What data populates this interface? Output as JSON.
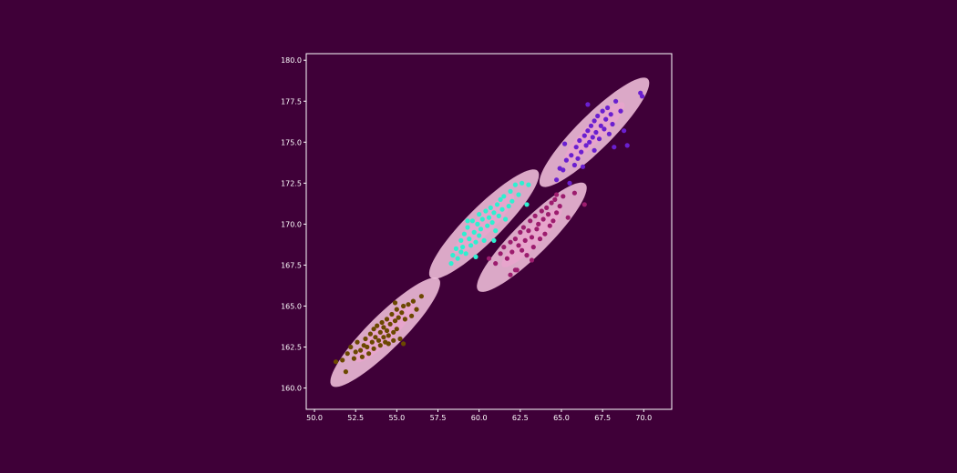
{
  "figure": {
    "background": "#3f0038"
  },
  "chart_data": {
    "type": "scatter",
    "title": "",
    "xlabel": "",
    "ylabel": "",
    "xlim": [
      49.5,
      71.7
    ],
    "ylim": [
      158.7,
      180.4
    ],
    "xticks": [
      "50.0",
      "52.5",
      "55.0",
      "57.5",
      "60.0",
      "62.5",
      "65.0",
      "67.5",
      "70.0"
    ],
    "yticks": [
      "160.0",
      "162.5",
      "165.0",
      "167.5",
      "170.0",
      "172.5",
      "175.0",
      "177.5",
      "180.0"
    ],
    "grid": false,
    "legend": "none",
    "frame_color": "#ffffff",
    "ellipse_color": "#f7c6e0",
    "series": [
      {
        "color": "#6b4800",
        "center": [
          54.3,
          163.4
        ],
        "ellipse": {
          "semi_major": 4.6,
          "semi_minor": 1.05,
          "angle_deg": 45
        },
        "points": [
          [
            51.3,
            161.6
          ],
          [
            51.7,
            161.7
          ],
          [
            51.9,
            161.0
          ],
          [
            52.0,
            162.1
          ],
          [
            52.2,
            162.5
          ],
          [
            52.4,
            161.8
          ],
          [
            52.5,
            162.2
          ],
          [
            52.6,
            162.8
          ],
          [
            52.8,
            162.3
          ],
          [
            52.9,
            161.9
          ],
          [
            53.0,
            162.6
          ],
          [
            53.1,
            163.0
          ],
          [
            53.2,
            162.5
          ],
          [
            53.3,
            162.1
          ],
          [
            53.4,
            163.3
          ],
          [
            53.5,
            162.8
          ],
          [
            53.6,
            163.6
          ],
          [
            53.6,
            162.4
          ],
          [
            53.7,
            163.1
          ],
          [
            53.8,
            163.8
          ],
          [
            53.9,
            162.9
          ],
          [
            54.0,
            163.4
          ],
          [
            54.0,
            162.6
          ],
          [
            54.1,
            164.0
          ],
          [
            54.2,
            163.1
          ],
          [
            54.2,
            163.7
          ],
          [
            54.3,
            162.8
          ],
          [
            54.4,
            163.5
          ],
          [
            54.4,
            164.2
          ],
          [
            54.5,
            163.2
          ],
          [
            54.5,
            162.7
          ],
          [
            54.6,
            163.9
          ],
          [
            54.7,
            164.5
          ],
          [
            54.8,
            163.4
          ],
          [
            54.8,
            162.9
          ],
          [
            54.9,
            164.1
          ],
          [
            55.0,
            164.8
          ],
          [
            55.0,
            163.6
          ],
          [
            55.1,
            164.3
          ],
          [
            55.2,
            163.0
          ],
          [
            55.3,
            164.6
          ],
          [
            55.4,
            165.0
          ],
          [
            55.4,
            162.7
          ],
          [
            55.5,
            164.2
          ],
          [
            55.7,
            165.1
          ],
          [
            55.9,
            164.4
          ],
          [
            56.0,
            165.3
          ],
          [
            56.2,
            164.8
          ],
          [
            56.5,
            165.6
          ],
          [
            54.9,
            165.2
          ]
        ]
      },
      {
        "color": "#2ef0d0",
        "center": [
          60.3,
          170.0
        ],
        "ellipse": {
          "semi_major": 4.6,
          "semi_minor": 1.05,
          "angle_deg": 45
        },
        "points": [
          [
            58.3,
            167.6
          ],
          [
            58.4,
            168.1
          ],
          [
            58.6,
            168.5
          ],
          [
            58.7,
            167.9
          ],
          [
            58.9,
            169.0
          ],
          [
            59.0,
            168.6
          ],
          [
            59.1,
            169.4
          ],
          [
            59.2,
            168.2
          ],
          [
            59.3,
            169.8
          ],
          [
            59.4,
            169.1
          ],
          [
            59.5,
            168.7
          ],
          [
            59.6,
            170.2
          ],
          [
            59.7,
            169.5
          ],
          [
            59.8,
            168.9
          ],
          [
            59.9,
            170.0
          ],
          [
            60.0,
            169.3
          ],
          [
            60.0,
            170.6
          ],
          [
            60.1,
            169.7
          ],
          [
            60.2,
            170.3
          ],
          [
            60.3,
            169.0
          ],
          [
            60.4,
            170.8
          ],
          [
            60.5,
            169.9
          ],
          [
            60.6,
            170.4
          ],
          [
            60.7,
            171.0
          ],
          [
            60.8,
            170.1
          ],
          [
            60.9,
            170.7
          ],
          [
            61.0,
            169.6
          ],
          [
            61.1,
            171.2
          ],
          [
            61.2,
            170.5
          ],
          [
            61.3,
            171.5
          ],
          [
            61.4,
            170.9
          ],
          [
            61.5,
            171.7
          ],
          [
            61.6,
            170.3
          ],
          [
            61.8,
            171.1
          ],
          [
            61.9,
            172.0
          ],
          [
            62.0,
            171.4
          ],
          [
            62.2,
            172.4
          ],
          [
            62.4,
            171.8
          ],
          [
            62.6,
            172.5
          ],
          [
            62.9,
            171.2
          ],
          [
            63.0,
            172.4
          ],
          [
            59.3,
            170.2
          ],
          [
            60.9,
            169.0
          ],
          [
            58.9,
            168.3
          ],
          [
            59.8,
            168.0
          ]
        ]
      },
      {
        "color": "#9c1c6e",
        "center": [
          63.2,
          169.2
        ],
        "ellipse": {
          "semi_major": 4.6,
          "semi_minor": 1.05,
          "angle_deg": 45
        },
        "points": [
          [
            60.6,
            167.9
          ],
          [
            61.0,
            167.6
          ],
          [
            61.3,
            168.2
          ],
          [
            61.5,
            168.6
          ],
          [
            61.7,
            167.9
          ],
          [
            61.9,
            168.9
          ],
          [
            62.0,
            168.3
          ],
          [
            62.2,
            169.1
          ],
          [
            62.3,
            167.2
          ],
          [
            62.4,
            168.7
          ],
          [
            62.5,
            169.5
          ],
          [
            62.6,
            168.4
          ],
          [
            62.7,
            169.8
          ],
          [
            62.8,
            169.0
          ],
          [
            62.9,
            168.1
          ],
          [
            63.0,
            169.6
          ],
          [
            63.1,
            170.2
          ],
          [
            63.2,
            169.2
          ],
          [
            63.3,
            168.6
          ],
          [
            63.4,
            170.5
          ],
          [
            63.5,
            169.7
          ],
          [
            63.6,
            170.0
          ],
          [
            63.7,
            169.1
          ],
          [
            63.8,
            170.8
          ],
          [
            63.9,
            170.3
          ],
          [
            64.0,
            169.4
          ],
          [
            64.1,
            171.0
          ],
          [
            64.2,
            170.6
          ],
          [
            64.3,
            169.9
          ],
          [
            64.4,
            171.3
          ],
          [
            64.5,
            170.2
          ],
          [
            64.6,
            171.5
          ],
          [
            64.7,
            170.7
          ],
          [
            64.9,
            171.1
          ],
          [
            65.1,
            171.7
          ],
          [
            65.4,
            170.4
          ],
          [
            65.8,
            171.9
          ],
          [
            66.4,
            171.2
          ],
          [
            64.7,
            171.8
          ],
          [
            62.2,
            167.2
          ],
          [
            61.9,
            166.9
          ],
          [
            63.2,
            167.8
          ]
        ]
      },
      {
        "color": "#6a1fd0",
        "center": [
          67.0,
          175.6
        ],
        "ellipse": {
          "semi_major": 4.6,
          "semi_minor": 1.05,
          "angle_deg": 45
        },
        "points": [
          [
            64.7,
            172.7
          ],
          [
            65.1,
            173.3
          ],
          [
            65.3,
            173.9
          ],
          [
            65.5,
            172.5
          ],
          [
            65.6,
            174.2
          ],
          [
            65.8,
            173.6
          ],
          [
            65.9,
            174.7
          ],
          [
            66.0,
            174.0
          ],
          [
            66.1,
            175.1
          ],
          [
            66.2,
            174.4
          ],
          [
            66.3,
            173.5
          ],
          [
            66.4,
            175.4
          ],
          [
            66.5,
            174.8
          ],
          [
            66.6,
            175.7
          ],
          [
            66.7,
            175.0
          ],
          [
            66.8,
            176.0
          ],
          [
            66.9,
            175.3
          ],
          [
            67.0,
            174.5
          ],
          [
            67.0,
            176.3
          ],
          [
            67.1,
            175.6
          ],
          [
            67.2,
            176.6
          ],
          [
            67.3,
            175.2
          ],
          [
            67.4,
            176.0
          ],
          [
            67.5,
            176.9
          ],
          [
            67.6,
            175.8
          ],
          [
            67.7,
            176.4
          ],
          [
            67.8,
            177.1
          ],
          [
            67.9,
            175.5
          ],
          [
            68.0,
            176.7
          ],
          [
            68.1,
            176.1
          ],
          [
            68.3,
            177.5
          ],
          [
            68.6,
            176.9
          ],
          [
            68.8,
            175.7
          ],
          [
            69.0,
            174.8
          ],
          [
            65.2,
            174.9
          ],
          [
            64.9,
            173.4
          ],
          [
            69.8,
            178.0
          ],
          [
            69.9,
            177.8
          ],
          [
            68.2,
            174.7
          ],
          [
            66.6,
            177.3
          ]
        ]
      }
    ]
  }
}
